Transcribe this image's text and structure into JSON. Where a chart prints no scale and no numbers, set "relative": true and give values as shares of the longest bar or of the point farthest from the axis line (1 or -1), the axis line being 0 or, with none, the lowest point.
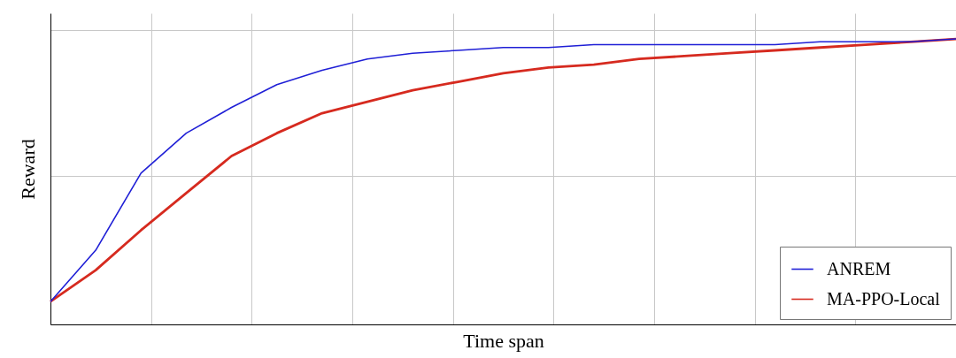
{
  "chart_data": {
    "type": "line",
    "relative": true,
    "xlabel": "Time span",
    "ylabel": "Reward",
    "grid": true,
    "legend": "bottom right",
    "line_style": "solid",
    "marker": "none",
    "categories": [
      null,
      null,
      null,
      null,
      null,
      null,
      null,
      null,
      null,
      null,
      null,
      null,
      null,
      null,
      null,
      null,
      null,
      null,
      null,
      null,
      null
    ],
    "series": [
      {
        "name": "ANREM",
        "color": "#1f1fd6",
        "values": [
          0.08,
          0.26,
          0.53,
          0.67,
          0.76,
          0.84,
          0.89,
          0.93,
          0.95,
          0.96,
          0.97,
          0.97,
          0.98,
          0.98,
          0.98,
          0.98,
          0.98,
          0.99,
          0.99,
          0.99,
          1
        ]
      },
      {
        "name": "MA-PPO-Local",
        "color": "#d62a1f",
        "values": [
          0.08,
          0.19,
          0.33,
          0.46,
          0.59,
          0.67,
          0.74,
          0.78,
          0.82,
          0.85,
          0.88,
          0.9,
          0.91,
          0.93,
          0.94,
          0.95,
          0.96,
          0.97,
          0.98,
          0.99,
          1
        ]
      }
    ]
  }
}
